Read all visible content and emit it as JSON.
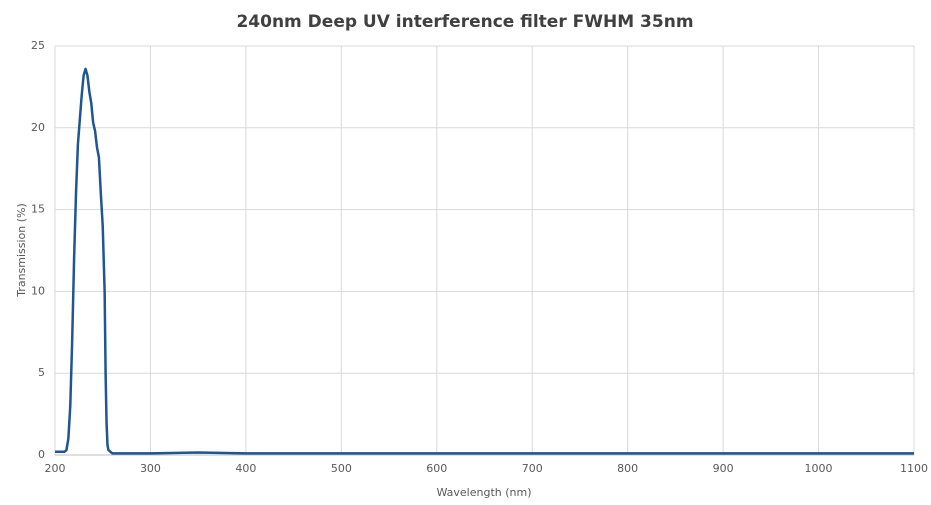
{
  "chart_data": {
    "type": "line",
    "title": "240nm Deep UV interference filter FWHM 35nm",
    "x_label": "Wavelength (nm)",
    "y_label": "Transmission (%)",
    "x": [
      200,
      210,
      212,
      214,
      216,
      218,
      220,
      222,
      224,
      226,
      228,
      230,
      232,
      234,
      236,
      238,
      240,
      242,
      244,
      246,
      248,
      250,
      252,
      253,
      254,
      255,
      256,
      258,
      260,
      300,
      350,
      400,
      500,
      600,
      700,
      800,
      900,
      1000,
      1100
    ],
    "series": [
      {
        "name": "Transmission",
        "color": "#1f5591",
        "values": [
          0.2,
          0.2,
          0.3,
          1,
          3,
          7,
          12,
          16,
          19,
          20.5,
          22,
          23.2,
          23.6,
          23.2,
          22.2,
          21.5,
          20.3,
          19.8,
          18.8,
          18.2,
          16,
          14,
          10,
          5,
          2,
          0.6,
          0.3,
          0.2,
          0.1,
          0.1,
          0.15,
          0.1,
          0.1,
          0.1,
          0.1,
          0.1,
          0.1,
          0.1,
          0.1
        ]
      }
    ],
    "xlim": [
      200,
      1100
    ],
    "xticks": [
      200,
      300,
      400,
      500,
      600,
      700,
      800,
      900,
      1000,
      1100
    ],
    "ylim": [
      0,
      25
    ],
    "yticks": [
      0,
      5,
      10,
      15,
      20,
      25
    ],
    "grid": true
  }
}
